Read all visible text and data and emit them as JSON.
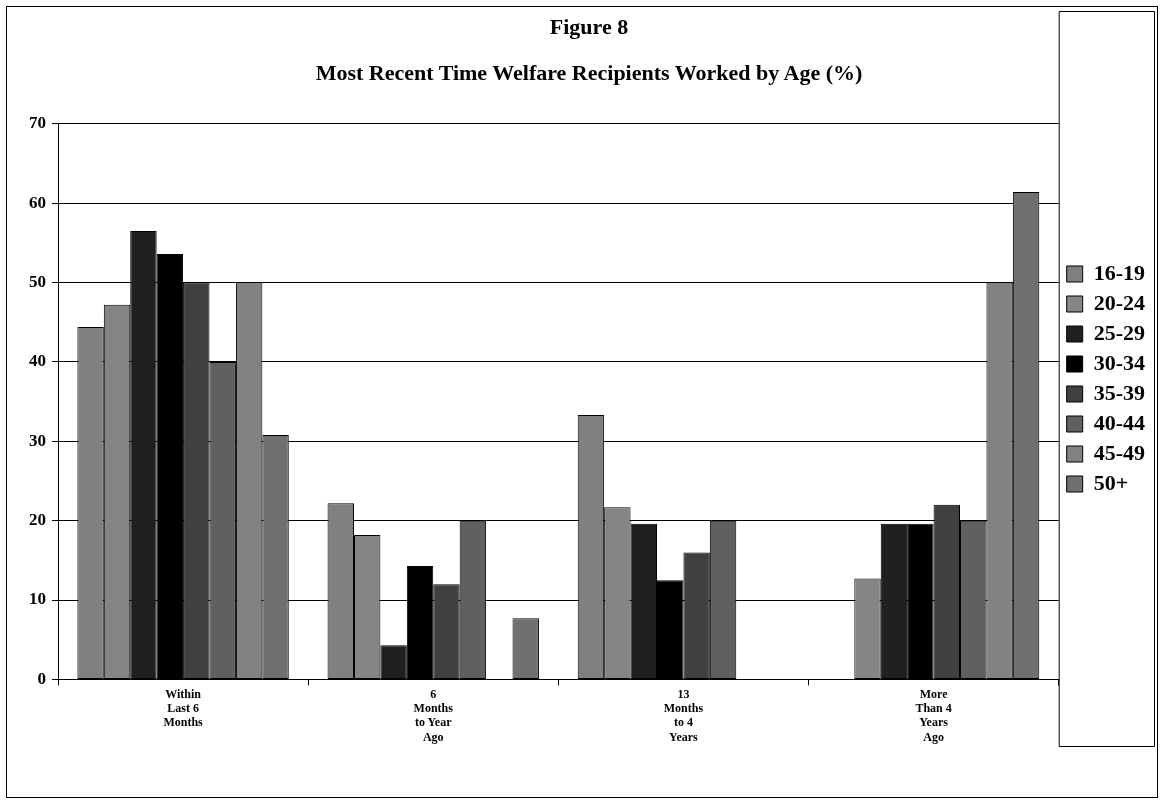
{
  "chart_data": {
    "type": "bar",
    "title": "Figure 8",
    "subtitle": "Most Recent Time Welfare Recipients Worked by Age (%)",
    "categories": [
      "Within\nLast 6\nMonths",
      "6\nMonths\nto Year\nAgo",
      "13\nMonths\nto 4\nYears",
      "More\nThan 4\nYears\nAgo"
    ],
    "series": [
      {
        "name": "16-19",
        "color": "#808080",
        "values": [
          44.4,
          22.2,
          33.3,
          0
        ]
      },
      {
        "name": "20-24",
        "color": "#858585",
        "values": [
          47.2,
          18.2,
          21.7,
          12.7
        ]
      },
      {
        "name": "25-29",
        "color": "#202020",
        "values": [
          56.5,
          4.3,
          19.6,
          19.6
        ]
      },
      {
        "name": "30-34",
        "color": "#000000",
        "values": [
          53.6,
          14.3,
          12.5,
          19.6
        ]
      },
      {
        "name": "35-39",
        "color": "#404040",
        "values": [
          50,
          12,
          16,
          22
        ]
      },
      {
        "name": "40-44",
        "color": "#606060",
        "values": [
          40,
          20,
          20,
          20
        ]
      },
      {
        "name": "45-49",
        "color": "#828282",
        "values": [
          50,
          0,
          0,
          50
        ]
      },
      {
        "name": "50+",
        "color": "#707070",
        "values": [
          30.8,
          7.7,
          0,
          61.4
        ]
      }
    ],
    "ylim": [
      0,
      70
    ],
    "yticks": [
      0,
      10,
      20,
      30,
      40,
      50,
      60,
      70
    ],
    "grid": "y",
    "legend": "right"
  }
}
